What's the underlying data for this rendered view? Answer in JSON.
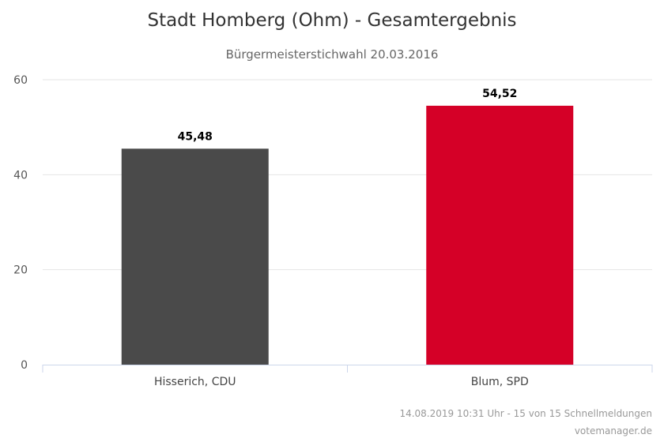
{
  "chart_data": {
    "type": "bar",
    "title": "Stadt Homberg (Ohm) - Gesamtergebnis",
    "subtitle": "Bürgermeisterstichwahl 20.03.2016",
    "categories": [
      "Hisserich, CDU",
      "Blum, SPD"
    ],
    "values": [
      45.48,
      54.52
    ],
    "data_labels": [
      "45,48",
      "54,52"
    ],
    "colors": [
      "#4a4a4a",
      "#d50027"
    ],
    "ylim": [
      0,
      60
    ],
    "yticks": [
      0,
      20,
      40,
      60
    ],
    "grid": true,
    "legend": "none",
    "xlabel": "",
    "ylabel": ""
  },
  "credits": {
    "line1": "14.08.2019 10:31 Uhr - 15 von 15 Schnellmeldungen",
    "line2": "votemanager.de"
  }
}
